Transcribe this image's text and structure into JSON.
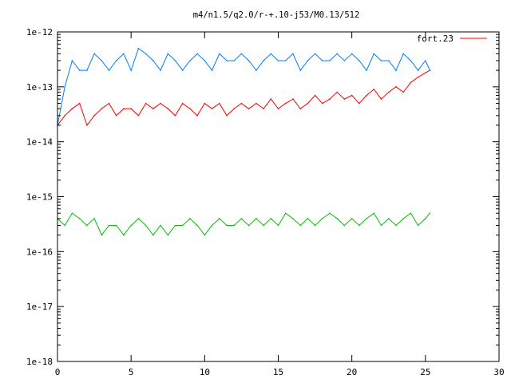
{
  "chart_data": {
    "type": "line",
    "title": "m4/n1.5/q2.0/r-+.10-j53/M0.13/512",
    "xlabel": "",
    "ylabel": "",
    "xlim": [
      0,
      30
    ],
    "ylim": [
      1e-18,
      1e-12
    ],
    "yscale": "log",
    "grid": false,
    "legend_position": "top-right",
    "x_ticks": [
      "0",
      "5",
      "10",
      "15",
      "20",
      "25",
      "30"
    ],
    "x_tick_values": [
      0,
      5,
      10,
      15,
      20,
      25,
      30
    ],
    "y_ticks": [
      "1e-18",
      "1e-17",
      "1e-16",
      "1e-15",
      "1e-14",
      "1e-13",
      "1e-12"
    ],
    "y_tick_values": [
      -18,
      -17,
      -16,
      -15,
      -14,
      -13,
      -12
    ],
    "series": [
      {
        "name": "fort.23",
        "color": "#ff0000",
        "x": [
          0,
          0.5,
          1,
          1.5,
          2,
          2.5,
          3,
          3.5,
          4,
          4.5,
          5,
          5.5,
          6,
          6.5,
          7,
          7.5,
          8,
          8.5,
          9,
          9.5,
          10,
          10.5,
          11,
          11.5,
          12,
          12.5,
          13,
          13.5,
          14,
          14.5,
          15,
          15.5,
          16,
          16.5,
          17,
          17.5,
          18,
          18.5,
          19,
          19.5,
          20,
          20.5,
          21,
          21.5,
          22,
          22.5,
          23,
          23.5,
          24,
          24.5,
          25,
          25.3
        ],
        "y": [
          2e-14,
          3e-14,
          4e-14,
          5e-14,
          2e-14,
          3e-14,
          4e-14,
          5e-14,
          3e-14,
          4e-14,
          4e-14,
          3e-14,
          5e-14,
          4e-14,
          5e-14,
          4e-14,
          3e-14,
          5e-14,
          4e-14,
          3e-14,
          5e-14,
          4e-14,
          5e-14,
          3e-14,
          4e-14,
          5e-14,
          4e-14,
          5e-14,
          4e-14,
          6e-14,
          4e-14,
          5e-14,
          6e-14,
          4e-14,
          5e-14,
          7e-14,
          5e-14,
          6e-14,
          8e-14,
          6e-14,
          7e-14,
          5e-14,
          7e-14,
          9e-14,
          6e-14,
          8e-14,
          1e-13,
          8e-14,
          1.2e-13,
          1.5e-13,
          1.8e-13,
          2e-13
        ]
      },
      {
        "name": "",
        "color": "#0080ff",
        "x": [
          0,
          0.5,
          1,
          1.5,
          2,
          2.5,
          3,
          3.5,
          4,
          4.5,
          5,
          5.5,
          6,
          6.5,
          7,
          7.5,
          8,
          8.5,
          9,
          9.5,
          10,
          10.5,
          11,
          11.5,
          12,
          12.5,
          13,
          13.5,
          14,
          14.5,
          15,
          15.5,
          16,
          16.5,
          17,
          17.5,
          18,
          18.5,
          19,
          19.5,
          20,
          20.5,
          21,
          21.5,
          22,
          22.5,
          23,
          23.5,
          24,
          24.5,
          25,
          25.3
        ],
        "y": [
          2e-14,
          1e-13,
          3e-13,
          2e-13,
          2e-13,
          4e-13,
          3e-13,
          2e-13,
          3e-13,
          4e-13,
          2e-13,
          5e-13,
          4e-13,
          3e-13,
          2e-13,
          4e-13,
          3e-13,
          2e-13,
          3e-13,
          4e-13,
          3e-13,
          2e-13,
          4e-13,
          3e-13,
          3e-13,
          4e-13,
          3e-13,
          2e-13,
          3e-13,
          4e-13,
          3e-13,
          3e-13,
          4e-13,
          2e-13,
          3e-13,
          4e-13,
          3e-13,
          3e-13,
          4e-13,
          3e-13,
          4e-13,
          3e-13,
          2e-13,
          4e-13,
          3e-13,
          3e-13,
          2e-13,
          4e-13,
          3e-13,
          2e-13,
          3e-13,
          2e-13
        ]
      },
      {
        "name": "",
        "color": "#00c000",
        "x": [
          0,
          0.5,
          1,
          1.5,
          2,
          2.5,
          3,
          3.5,
          4,
          4.5,
          5,
          5.5,
          6,
          6.5,
          7,
          7.5,
          8,
          8.5,
          9,
          9.5,
          10,
          10.5,
          11,
          11.5,
          12,
          12.5,
          13,
          13.5,
          14,
          14.5,
          15,
          15.5,
          16,
          16.5,
          17,
          17.5,
          18,
          18.5,
          19,
          19.5,
          20,
          20.5,
          21,
          21.5,
          22,
          22.5,
          23,
          23.5,
          24,
          24.5,
          25,
          25.3
        ],
        "y": [
          4e-16,
          3e-16,
          5e-16,
          4e-16,
          3e-16,
          4e-16,
          2e-16,
          3e-16,
          3e-16,
          2e-16,
          3e-16,
          4e-16,
          3e-16,
          2e-16,
          3e-16,
          2e-16,
          3e-16,
          3e-16,
          4e-16,
          3e-16,
          2e-16,
          3e-16,
          4e-16,
          3e-16,
          3e-16,
          4e-16,
          3e-16,
          4e-16,
          3e-16,
          4e-16,
          3e-16,
          5e-16,
          4e-16,
          3e-16,
          4e-16,
          3e-16,
          4e-16,
          5e-16,
          4e-16,
          3e-16,
          4e-16,
          3e-16,
          4e-16,
          5e-16,
          3e-16,
          4e-16,
          3e-16,
          4e-16,
          5e-16,
          3e-16,
          4e-16,
          5e-16
        ]
      }
    ]
  }
}
